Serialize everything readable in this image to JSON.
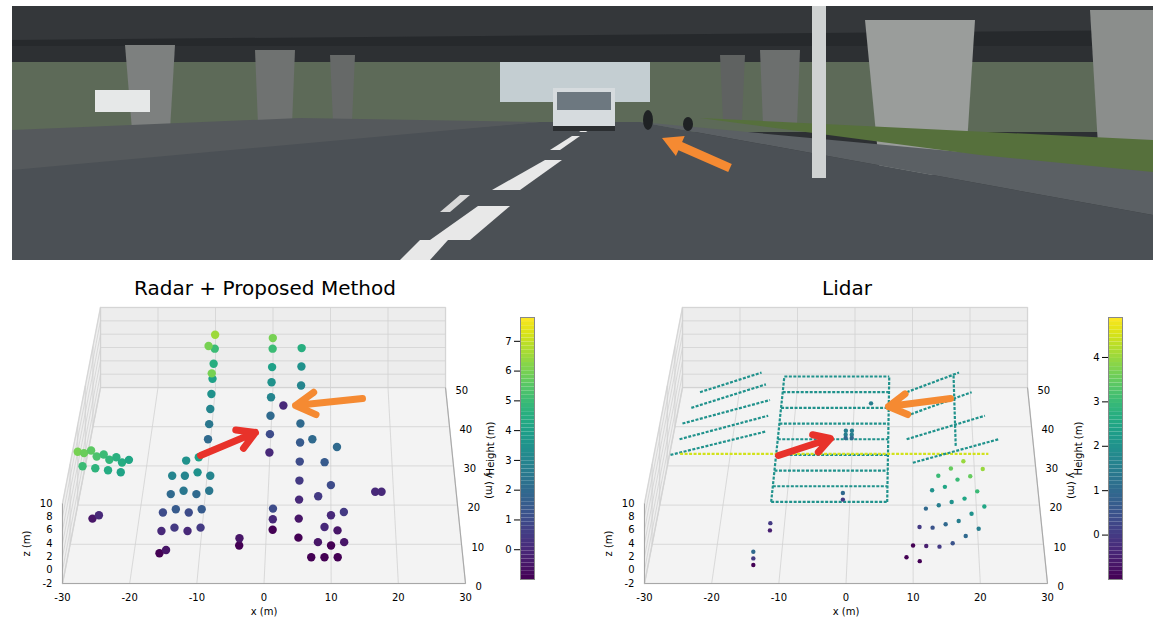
{
  "chart_data": [
    {
      "type": "scatter3d",
      "title": "Radar + Proposed Method",
      "x_label": "x (m)",
      "y_label": "y (m)",
      "z_label": "z (m)",
      "xlim": [
        -30,
        30
      ],
      "xticks": [
        -30,
        -20,
        -10,
        0,
        10,
        20,
        30
      ],
      "ylim": [
        0,
        50
      ],
      "yticks": [
        0,
        10,
        20,
        30,
        40,
        50
      ],
      "zlim": [
        -2,
        10
      ],
      "zticks": [
        -2,
        0,
        2,
        4,
        6,
        8,
        10
      ],
      "grid": true,
      "color": "viridis",
      "colorbar": {
        "label": "Height (m)",
        "range": [
          -1,
          7.8
        ],
        "ticks": [
          0,
          1,
          2,
          3,
          4,
          5,
          6,
          7
        ]
      },
      "points": [
        [
          -30,
          20,
          6
        ],
        [
          -29,
          20,
          5.8
        ],
        [
          -28,
          21,
          5.6
        ],
        [
          -27,
          20,
          5.3
        ],
        [
          -26,
          21,
          5
        ],
        [
          -25,
          20,
          4.8
        ],
        [
          -24,
          21,
          4.6
        ],
        [
          -23,
          20,
          4.4
        ],
        [
          -22,
          21,
          4.2
        ],
        [
          -29,
          18,
          5
        ],
        [
          -27,
          18,
          4.7
        ],
        [
          -25,
          18,
          4.4
        ],
        [
          -23,
          18,
          4.1
        ],
        [
          -27,
          14,
          -0.5
        ],
        [
          -26,
          14,
          0
        ],
        [
          -16,
          10,
          0
        ],
        [
          -14,
          10,
          0.5
        ],
        [
          -12,
          10,
          0
        ],
        [
          -10,
          10,
          0.5
        ],
        [
          -16,
          13,
          1
        ],
        [
          -14,
          13,
          1.5
        ],
        [
          -12,
          13,
          1
        ],
        [
          -10,
          13,
          1.5
        ],
        [
          -15,
          16,
          2
        ],
        [
          -13,
          16,
          2.5
        ],
        [
          -11,
          16,
          2
        ],
        [
          -9,
          16,
          2.5
        ],
        [
          -15,
          19,
          3
        ],
        [
          -13,
          19,
          3
        ],
        [
          -11,
          19,
          3.5
        ],
        [
          -9,
          19,
          3
        ],
        [
          -13,
          22,
          3.5
        ],
        [
          -11,
          22,
          4
        ],
        [
          -16,
          6,
          -1
        ],
        [
          -15,
          6,
          -0.5
        ],
        [
          -4,
          8,
          -1
        ],
        [
          -4,
          9,
          -0.5
        ],
        [
          -10,
          30,
          2
        ],
        [
          -10,
          33,
          2.5
        ],
        [
          -10,
          36,
          3
        ],
        [
          -10,
          39,
          3.5
        ],
        [
          -10,
          42,
          4
        ],
        [
          -10,
          45,
          4.5
        ],
        [
          -10,
          48,
          5
        ],
        [
          -11,
          47,
          6
        ],
        [
          -10,
          49,
          6.5
        ],
        [
          -10,
          40,
          6
        ],
        [
          0,
          30,
          0
        ],
        [
          0,
          33,
          1
        ],
        [
          0,
          36,
          2
        ],
        [
          0,
          39,
          3
        ],
        [
          0,
          42,
          3.5
        ],
        [
          0,
          45,
          4
        ],
        [
          0,
          48,
          5
        ],
        [
          0,
          49,
          6
        ],
        [
          1,
          12,
          -1
        ],
        [
          1,
          13,
          0
        ],
        [
          1,
          14,
          1
        ],
        [
          2,
          42,
          0
        ],
        [
          5,
          10,
          -1
        ],
        [
          5,
          14,
          -0.5
        ],
        [
          5,
          18,
          0
        ],
        [
          5,
          22,
          0.5
        ],
        [
          5,
          26,
          1
        ],
        [
          5,
          30,
          1.5
        ],
        [
          5,
          34,
          2
        ],
        [
          5,
          38,
          2.5
        ],
        [
          5,
          42,
          3
        ],
        [
          5,
          46,
          3.5
        ],
        [
          5,
          49,
          4.5
        ],
        [
          7,
          5,
          -1
        ],
        [
          9,
          5,
          -1
        ],
        [
          11,
          5,
          -1
        ],
        [
          8,
          8,
          -0.5
        ],
        [
          10,
          8,
          -1
        ],
        [
          12,
          8,
          -0.5
        ],
        [
          9,
          11,
          0
        ],
        [
          11,
          11,
          -0.5
        ],
        [
          10,
          14,
          0
        ],
        [
          12,
          14,
          0.5
        ],
        [
          8,
          18,
          0.5
        ],
        [
          10,
          20,
          1
        ],
        [
          9,
          25,
          1.5
        ],
        [
          11,
          28,
          2
        ],
        [
          7,
          30,
          2
        ],
        [
          17,
          20,
          0
        ],
        [
          18,
          20,
          0
        ]
      ]
    },
    {
      "type": "scatter3d",
      "title": "Lidar",
      "x_label": "x (m)",
      "y_label": "y (m)",
      "z_label": "z (m)",
      "xlim": [
        -30,
        30
      ],
      "xticks": [
        -30,
        -20,
        -10,
        0,
        10,
        20,
        30
      ],
      "ylim": [
        0,
        50
      ],
      "yticks": [
        0,
        10,
        20,
        30,
        40,
        50
      ],
      "zlim": [
        -2,
        10
      ],
      "zticks": [
        -2,
        0,
        2,
        4,
        6,
        8,
        10
      ],
      "grid": true,
      "color": "viridis",
      "colorbar": {
        "label": "Height (m)",
        "range": [
          -1,
          4.9
        ],
        "ticks": [
          0,
          1,
          2,
          3,
          4
        ]
      },
      "segments": [
        [
          [
            -12,
            14,
            2
          ],
          [
            6,
            14,
            2
          ]
        ],
        [
          [
            -12,
            18,
            2
          ],
          [
            6,
            18,
            2
          ]
        ],
        [
          [
            -12,
            22,
            2
          ],
          [
            6,
            22,
            2
          ]
        ],
        [
          [
            -12,
            26,
            2
          ],
          [
            6,
            26,
            2
          ]
        ],
        [
          [
            -12,
            30,
            2
          ],
          [
            6,
            30,
            2
          ]
        ],
        [
          [
            -12,
            34,
            2
          ],
          [
            6,
            34,
            2
          ]
        ],
        [
          [
            -12,
            38,
            2
          ],
          [
            6,
            38,
            2
          ]
        ],
        [
          [
            -12,
            42,
            2
          ],
          [
            6,
            42,
            2
          ]
        ],
        [
          [
            -12,
            46,
            2
          ],
          [
            6,
            46,
            2
          ]
        ],
        [
          [
            -12,
            14,
            2
          ],
          [
            -12,
            46,
            2
          ]
        ],
        [
          [
            6,
            14,
            2
          ],
          [
            6,
            46,
            2
          ]
        ],
        [
          [
            -29,
            26,
            2
          ],
          [
            -14,
            32,
            2
          ]
        ],
        [
          [
            -28,
            30,
            2
          ],
          [
            -14,
            36,
            2
          ]
        ],
        [
          [
            -28,
            34,
            2
          ],
          [
            -14,
            40,
            2
          ]
        ],
        [
          [
            -27,
            38,
            2
          ],
          [
            -15,
            44,
            2
          ]
        ],
        [
          [
            -26,
            42,
            2
          ],
          [
            -16,
            47,
            2
          ]
        ],
        [
          [
            -27,
            22,
            4.5
          ],
          [
            22,
            22,
            4.5
          ]
        ],
        [
          [
            10,
            24,
            2
          ],
          [
            24,
            30,
            2
          ]
        ],
        [
          [
            9,
            30,
            2
          ],
          [
            22,
            36,
            2
          ]
        ],
        [
          [
            9,
            36,
            2
          ],
          [
            20,
            42,
            2
          ]
        ],
        [
          [
            9,
            42,
            2
          ],
          [
            18,
            47,
            2
          ]
        ],
        [
          [
            17,
            30,
            1
          ],
          [
            17,
            45,
            3
          ]
        ]
      ],
      "points": [
        [
          -1,
          32,
          1.5
        ],
        [
          0,
          32,
          1.5
        ],
        [
          -1,
          33,
          1.5
        ],
        [
          0,
          33,
          1.5
        ],
        [
          -1,
          32,
          1
        ],
        [
          0,
          32,
          1
        ],
        [
          3,
          40,
          1.5
        ],
        [
          -12,
          12,
          0
        ],
        [
          -12,
          11,
          -0.5
        ],
        [
          -14,
          3,
          -1
        ],
        [
          -14,
          3,
          0
        ],
        [
          -14,
          3,
          1
        ],
        [
          -1,
          18,
          0
        ],
        [
          -1,
          18,
          1
        ],
        [
          10,
          8,
          -1
        ],
        [
          12,
          7,
          -0.5
        ],
        [
          14,
          6,
          0
        ],
        [
          16,
          6,
          0.5
        ],
        [
          18,
          7,
          1
        ],
        [
          20,
          8,
          1.5
        ],
        [
          11,
          11,
          0
        ],
        [
          13,
          10,
          0.5
        ],
        [
          15,
          10,
          1
        ],
        [
          17,
          10,
          1.5
        ],
        [
          19,
          11,
          2
        ],
        [
          21,
          12,
          2.5
        ],
        [
          12,
          14,
          1
        ],
        [
          14,
          14,
          1.5
        ],
        [
          16,
          14,
          2
        ],
        [
          18,
          14,
          2.5
        ],
        [
          20,
          15,
          3
        ],
        [
          13,
          17,
          2
        ],
        [
          15,
          17,
          2.5
        ],
        [
          17,
          18,
          3
        ],
        [
          19,
          18,
          3.5
        ],
        [
          21,
          19,
          4
        ],
        [
          9,
          5,
          -1
        ],
        [
          11,
          4,
          -1
        ],
        [
          14,
          19,
          3
        ],
        [
          16,
          20,
          3.5
        ],
        [
          18,
          21,
          4
        ]
      ]
    }
  ]
}
